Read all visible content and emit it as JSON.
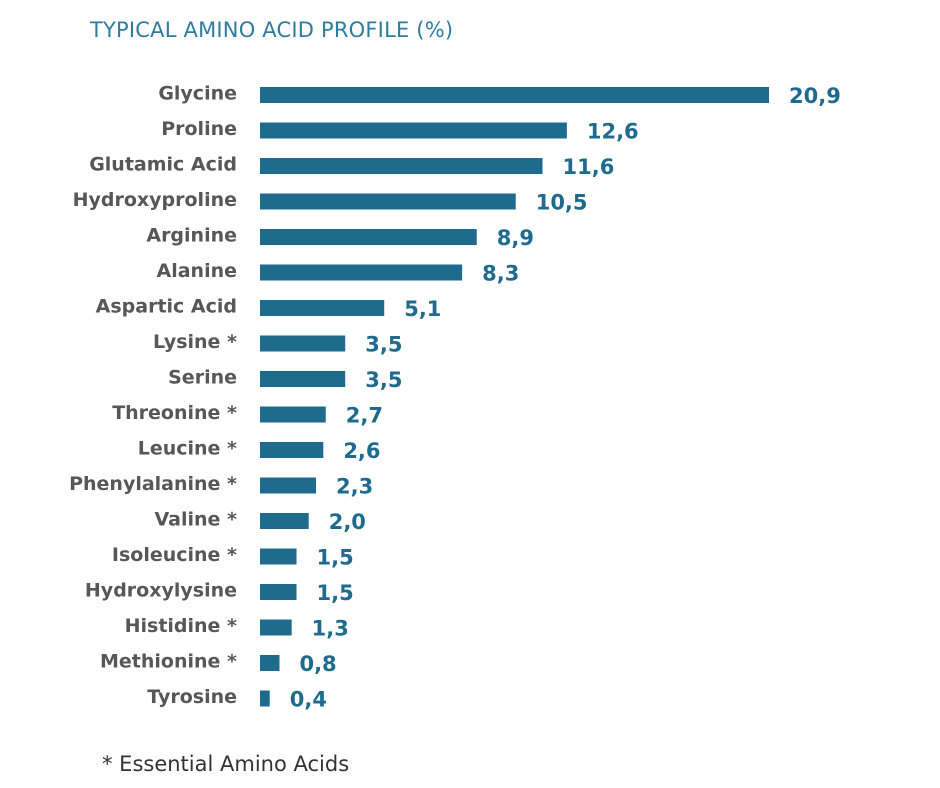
{
  "colors": {
    "bar": "#1f6b8e",
    "value_label": "#1f6b8e",
    "category_label": "#575757",
    "title": "#2e7da0",
    "footnote": "#333333"
  },
  "chart_data": {
    "type": "bar",
    "orientation": "horizontal",
    "title": "TYPICAL AMINO ACID PROFILE (%)",
    "xlabel": "",
    "ylabel": "",
    "xlim": [
      0,
      20.9
    ],
    "grid": false,
    "legend": "none",
    "categories": [
      "Glycine",
      "Proline",
      "Glutamic Acid",
      "Hydroxyproline",
      "Arginine",
      "Alanine",
      "Aspartic Acid",
      "Lysine *",
      "Serine",
      "Threonine *",
      "Leucine *",
      "Phenylalanine *",
      "Valine *",
      "Isoleucine *",
      "Hydroxylysine",
      "Histidine *",
      "Methionine *",
      "Tyrosine"
    ],
    "values": [
      20.9,
      12.6,
      11.6,
      10.5,
      8.9,
      8.3,
      5.1,
      3.5,
      3.5,
      2.7,
      2.6,
      2.3,
      2.0,
      1.5,
      1.5,
      1.3,
      0.8,
      0.4
    ],
    "value_labels": [
      "20,9",
      "12,6",
      "11,6",
      "10,5",
      "8,9",
      "8,3",
      "5,1",
      "3,5",
      "3,5",
      "2,7",
      "2,6",
      "2,3",
      "2,0",
      "1,5",
      "1,5",
      "1,3",
      "0,8",
      "0,4"
    ]
  },
  "footnote": "* Essential Amino Acids"
}
